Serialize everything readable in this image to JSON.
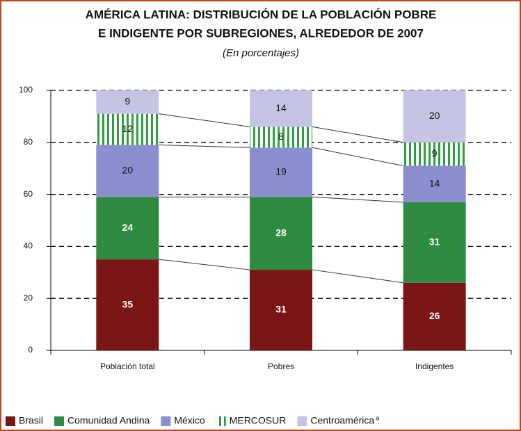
{
  "chart_data": {
    "type": "stacked-bar",
    "title": [
      "AMÉRICA LATINA: DISTRIBUCIÓN DE LA POBLACIÓN POBRE",
      "E INDIGENTE POR SUBREGIONES, ALREDEDOR DE 2007"
    ],
    "subtitle": "(En porcentajes)",
    "categories": [
      "Población total",
      "Pobres",
      "Indigentes"
    ],
    "series": [
      {
        "name": "Brasil",
        "color": "#7a1616",
        "label_color": "#ffffff",
        "values": [
          35,
          31,
          26
        ]
      },
      {
        "name": "Comunidad Andina",
        "color": "#2e8b40",
        "label_color": "#ffffff",
        "values": [
          24,
          28,
          31
        ]
      },
      {
        "name": "México",
        "color": "#8b8ecf",
        "label_color": "#111111",
        "values": [
          20,
          19,
          14
        ]
      },
      {
        "name": "MERCOSUR",
        "color": "#2e9e40",
        "pattern": "vertical-stripes",
        "label_color": "#111111",
        "values": [
          12,
          8,
          9
        ]
      },
      {
        "name": "Centroamérica",
        "note": "a",
        "color": "#c5c4e4",
        "label_color": "#111111",
        "values": [
          9,
          14,
          20
        ]
      }
    ],
    "ylim": [
      0,
      100
    ],
    "yticks": [
      0,
      20,
      40,
      60,
      80,
      100
    ],
    "grid": true,
    "connectors": true,
    "legend": "bottom"
  }
}
